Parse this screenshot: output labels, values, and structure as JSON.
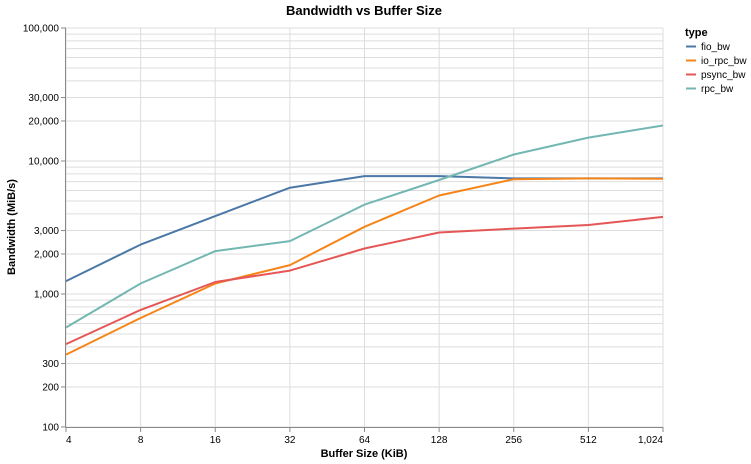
{
  "chart_data": {
    "type": "line",
    "title": "Bandwidth vs Buffer Size",
    "xlabel": "Buffer Size (KiB)",
    "ylabel": "Bandwidth (MiB/s)",
    "x_scale": "log2",
    "y_scale": "log10",
    "x": [
      4,
      8,
      16,
      32,
      64,
      128,
      256,
      512,
      1024
    ],
    "x_tick_labels": [
      "4",
      "8",
      "16",
      "32",
      "64",
      "128",
      "256",
      "512",
      "1,024"
    ],
    "ylim": [
      100,
      100000
    ],
    "y_ticks": [
      100,
      200,
      300,
      1000,
      2000,
      3000,
      10000,
      20000,
      30000,
      100000
    ],
    "y_tick_labels": [
      "100",
      "200",
      "300",
      "1,000",
      "2,000",
      "3,000",
      "10,000",
      "20,000",
      "30,000",
      "100,000"
    ],
    "grid": true,
    "legend": {
      "title": "type",
      "placement": "top-right"
    },
    "series": [
      {
        "name": "fio_bw",
        "color": "#4c78a8",
        "values": [
          1250,
          2350,
          3850,
          6300,
          7700,
          7700,
          7400,
          7400,
          7400
        ]
      },
      {
        "name": "io_rpc_bw",
        "color": "#f58518",
        "values": [
          350,
          660,
          1200,
          1650,
          3200,
          5500,
          7300,
          7400,
          7350
        ]
      },
      {
        "name": "psync_bw",
        "color": "#e45756",
        "values": [
          420,
          760,
          1230,
          1500,
          2200,
          2900,
          3100,
          3300,
          3800
        ]
      },
      {
        "name": "rpc_bw",
        "color": "#72b7b2",
        "values": [
          560,
          1200,
          2100,
          2500,
          4700,
          7200,
          11200,
          15000,
          18500
        ]
      }
    ]
  }
}
